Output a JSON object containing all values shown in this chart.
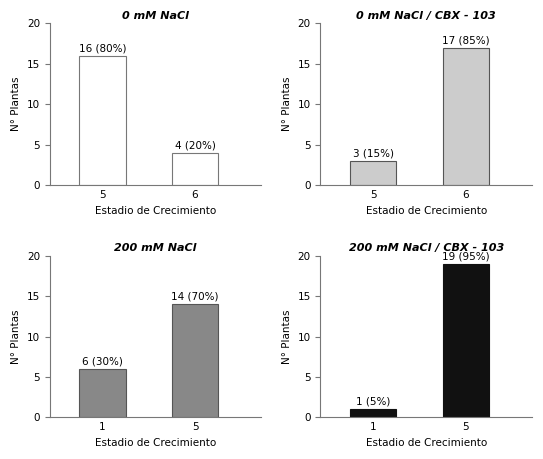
{
  "subplots": [
    {
      "title": "0 mM NaCl",
      "categories": [
        "5",
        "6"
      ],
      "values": [
        16,
        4
      ],
      "labels": [
        "16 (80%)",
        "4 (20%)"
      ],
      "bar_color": "white",
      "edge_color": "#777777",
      "xlabel": "Estadio de Crecimiento",
      "ylabel": "N° Plantas",
      "ylim": [
        0,
        20
      ],
      "yticks": [
        0,
        5,
        10,
        15,
        20
      ]
    },
    {
      "title": "0 mM NaCl / CBX - 103",
      "categories": [
        "5",
        "6"
      ],
      "values": [
        3,
        17
      ],
      "labels": [
        "3 (15%)",
        "17 (85%)"
      ],
      "bar_color": "#cccccc",
      "edge_color": "#555555",
      "xlabel": "Estadio de Crecimiento",
      "ylabel": "N° Plantas",
      "ylim": [
        0,
        20
      ],
      "yticks": [
        0,
        5,
        10,
        15,
        20
      ]
    },
    {
      "title": "200 mM NaCl",
      "categories": [
        "1",
        "5"
      ],
      "values": [
        6,
        14
      ],
      "labels": [
        "6 (30%)",
        "14 (70%)"
      ],
      "bar_color": "#888888",
      "edge_color": "#555555",
      "xlabel": "Estadio de Crecimiento",
      "ylabel": "N° Plantas",
      "ylim": [
        0,
        20
      ],
      "yticks": [
        0,
        5,
        10,
        15,
        20
      ]
    },
    {
      "title": "200 mM NaCl / CBX - 103",
      "categories": [
        "1",
        "5"
      ],
      "values": [
        1,
        19
      ],
      "labels": [
        "1 (5%)",
        "19 (95%)"
      ],
      "bar_color": "#111111",
      "edge_color": "#111111",
      "xlabel": "Estadio de Crecimiento",
      "ylabel": "N° Plantas",
      "ylim": [
        0,
        20
      ],
      "yticks": [
        0,
        5,
        10,
        15,
        20
      ]
    }
  ],
  "title_fontsize": 8,
  "label_fontsize": 7.5,
  "tick_fontsize": 7.5,
  "annotation_fontsize": 7.5,
  "bar_width": 0.35,
  "figure_bg": "white"
}
